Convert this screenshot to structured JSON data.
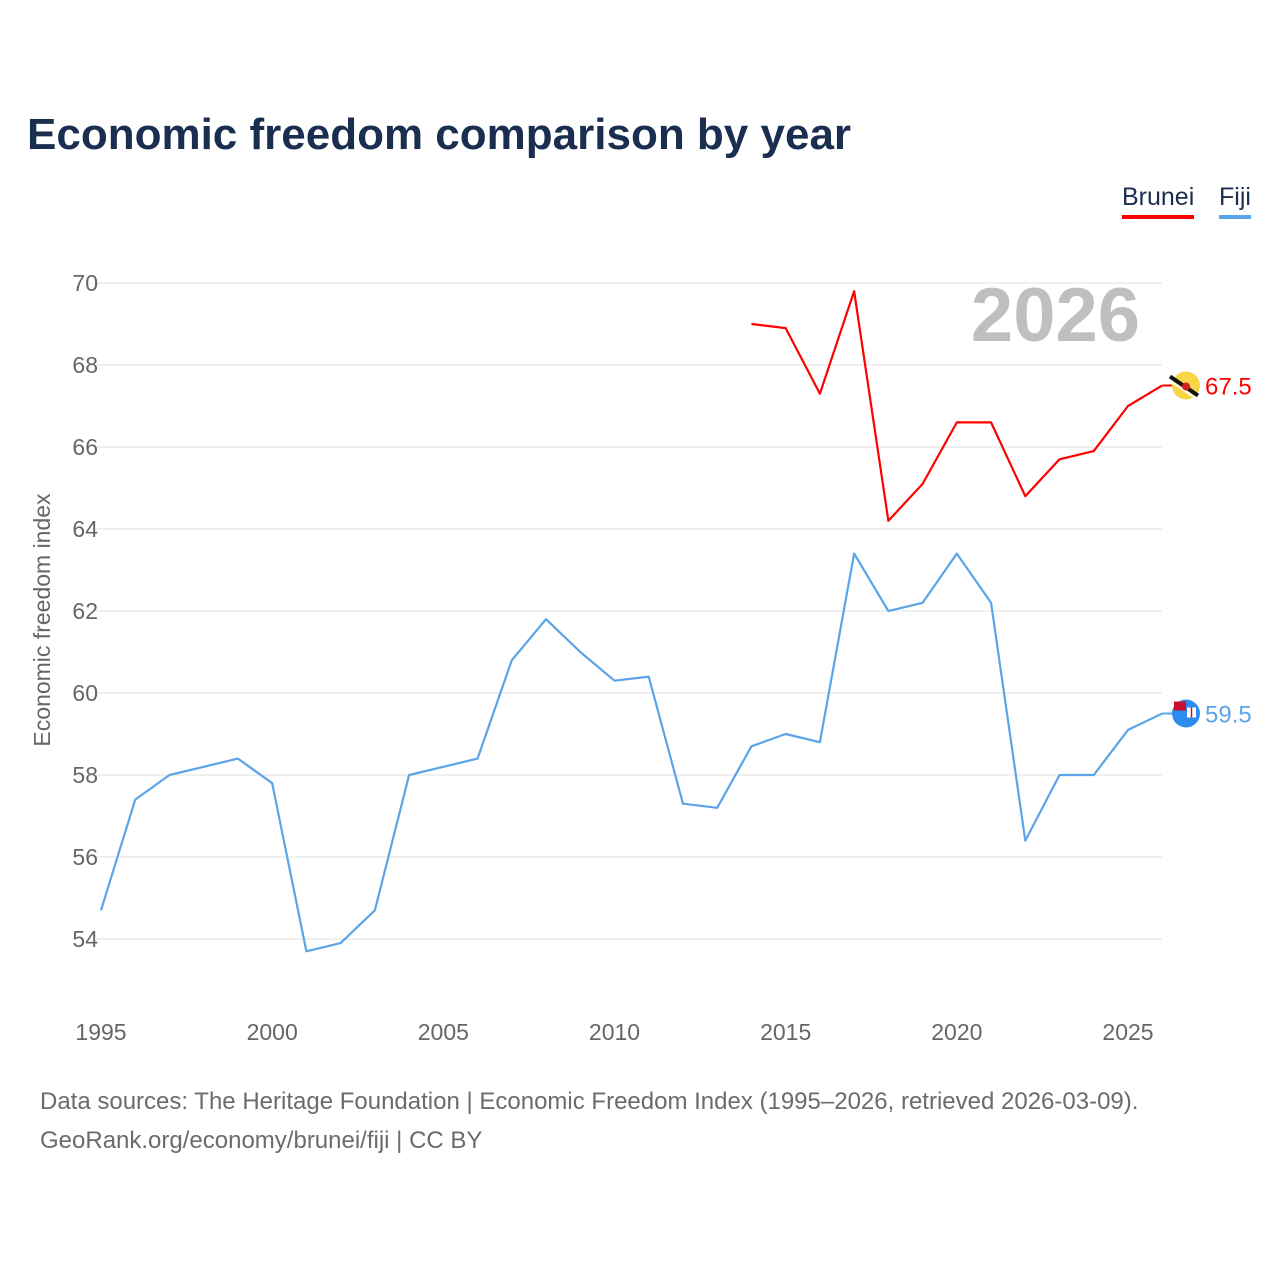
{
  "chart_data": {
    "type": "line",
    "title": "Economic freedom comparison by year",
    "xlabel": "",
    "ylabel": "Economic freedom index",
    "xlim": [
      1995,
      2026
    ],
    "ylim": [
      52.5,
      70.5
    ],
    "xticks": [
      1995,
      2000,
      2005,
      2010,
      2015,
      2020,
      2025
    ],
    "yticks": [
      54,
      56,
      58,
      60,
      62,
      64,
      66,
      68,
      70
    ],
    "grid": true,
    "legend": "top-right",
    "watermark_year": "2026",
    "series": [
      {
        "name": "Brunei",
        "color": "#ff0000",
        "end_label": "67.5",
        "x": [
          2014,
          2015,
          2016,
          2017,
          2018,
          2019,
          2020,
          2021,
          2022,
          2023,
          2024,
          2025,
          2026
        ],
        "values": [
          69.0,
          68.9,
          67.3,
          69.8,
          64.2,
          65.1,
          66.6,
          66.6,
          64.8,
          65.7,
          65.9,
          67.0,
          67.5
        ]
      },
      {
        "name": "Fiji",
        "color": "#5ba4e8",
        "end_label": "59.5",
        "x": [
          1995,
          1996,
          1997,
          1998,
          1999,
          2000,
          2001,
          2002,
          2003,
          2004,
          2005,
          2006,
          2007,
          2008,
          2009,
          2010,
          2011,
          2012,
          2013,
          2014,
          2015,
          2016,
          2017,
          2018,
          2019,
          2020,
          2021,
          2022,
          2023,
          2024,
          2025,
          2026
        ],
        "values": [
          54.7,
          57.4,
          58.0,
          58.2,
          58.4,
          57.8,
          53.7,
          53.9,
          54.7,
          58.0,
          58.2,
          58.4,
          60.8,
          61.8,
          61.0,
          60.3,
          60.4,
          57.3,
          57.2,
          58.7,
          59.0,
          58.8,
          63.4,
          62.0,
          62.2,
          63.4,
          62.2,
          56.4,
          58.0,
          58.0,
          59.1,
          59.5
        ]
      }
    ]
  },
  "footer": {
    "sources": "Data sources: The Heritage Foundation | Economic Freedom Index (1995–2026, retrieved 2026-03-09).",
    "credit": "GeoRank.org/economy/brunei/fiji | CC BY"
  }
}
